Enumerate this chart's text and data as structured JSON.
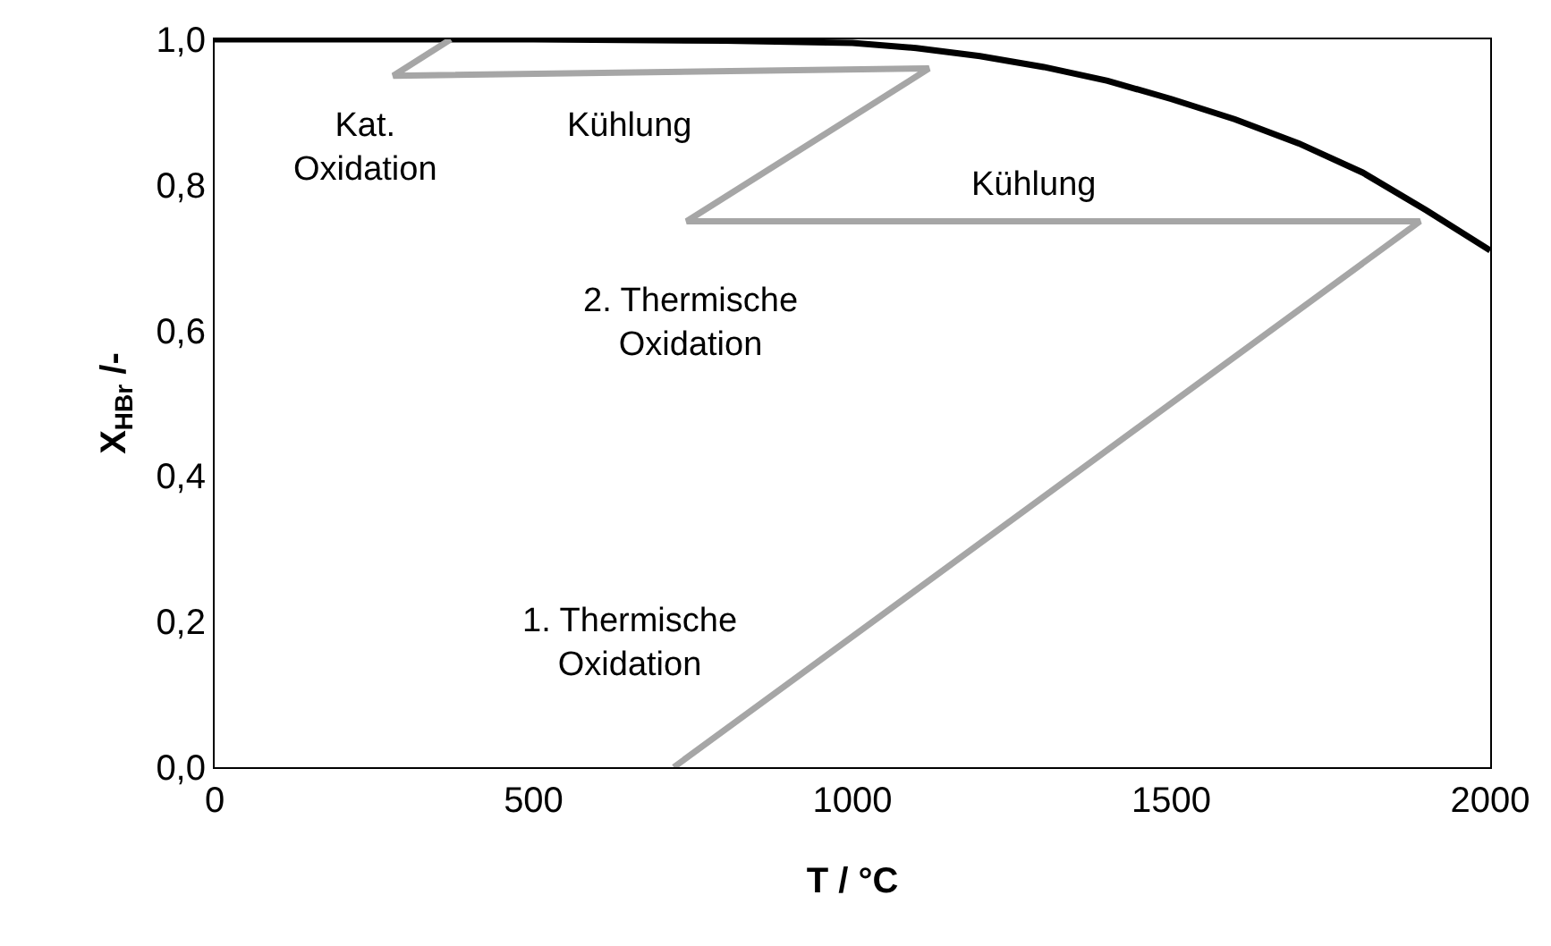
{
  "chart_data": {
    "type": "line",
    "xlabel": "T / °C",
    "ylabel": "X$_{HBr}$ /-",
    "xlim": [
      0,
      2000
    ],
    "xticks": [
      0,
      500,
      1000,
      1500,
      2000
    ],
    "ylim": [
      0,
      1
    ],
    "yticks": [
      {
        "value": 0,
        "label": "0,0"
      },
      {
        "value": 0.2,
        "label": "0,2"
      },
      {
        "value": 0.4,
        "label": "0,4"
      },
      {
        "value": 0.6,
        "label": "0,6"
      },
      {
        "value": 0.8,
        "label": "0,8"
      },
      {
        "value": 1,
        "label": "1,0"
      }
    ],
    "marker": "none",
    "line_style": "solid",
    "series": [
      {
        "color": "#000000",
        "x": [
          0,
          500,
          800,
          1000,
          1100,
          1200,
          1300,
          1400,
          1500,
          1600,
          1700,
          1800,
          1900,
          2000
        ],
        "values": [
          1,
          1,
          0.998,
          0.995,
          0.988,
          0.977,
          0.962,
          0.943,
          0.918,
          0.89,
          0.857,
          0.817,
          0.765,
          0.71
        ]
      },
      {
        "color": "#a6a6a6",
        "x": [
          720,
          1890,
          740,
          1120,
          280,
          370
        ],
        "values": [
          0,
          0.75,
          0.75,
          0.96,
          0.95,
          1
        ]
      }
    ],
    "annotations": [
      "Kat.\nOxidation",
      "Kühlung",
      "Kühlung",
      "2. Thermische\nOxidation",
      "1. Thermische\nOxidation"
    ]
  }
}
